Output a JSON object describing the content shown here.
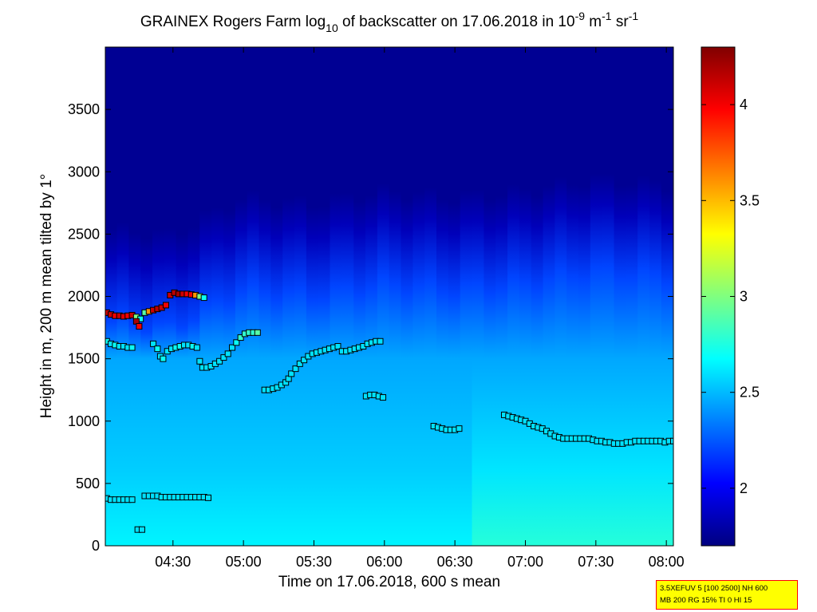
{
  "chart_data": {
    "type": "heatmap",
    "title_parts": {
      "prefix": "GRAINEX Rogers Farm log",
      "sub": "10",
      "middle": " of backscatter on 17.06.2018 in 10",
      "sup1": "-9",
      "unit1": " m",
      "sup2": "-1",
      "unit2": " sr",
      "sup3": "-1"
    },
    "xlabel": "Time on 17.06.2018, 600 s mean",
    "ylabel": "Height in m, 200 m mean tilted by 1°",
    "x_range_hours": [
      4.02,
      8.05
    ],
    "x_ticks": [
      {
        "value": 4.5,
        "label": "04:30"
      },
      {
        "value": 5.0,
        "label": "05:00"
      },
      {
        "value": 5.5,
        "label": "05:30"
      },
      {
        "value": 6.0,
        "label": "06:00"
      },
      {
        "value": 6.5,
        "label": "06:30"
      },
      {
        "value": 7.0,
        "label": "07:00"
      },
      {
        "value": 7.5,
        "label": "07:30"
      },
      {
        "value": 8.0,
        "label": "08:00"
      }
    ],
    "ylim": [
      0,
      4000
    ],
    "y_ticks": [
      0,
      500,
      1000,
      1500,
      2000,
      2500,
      3000,
      3500
    ],
    "colorbar": {
      "range": [
        1.7,
        4.3
      ],
      "ticks": [
        2,
        2.5,
        3,
        3.5,
        4
      ],
      "tick_labels": [
        "2",
        "2.5",
        "3",
        "3.5",
        "4"
      ],
      "colormap": "jet"
    },
    "background_field": {
      "description_free": true,
      "times": [
        4.02,
        4.5,
        5.0,
        5.5,
        6.0,
        6.5,
        7.0,
        7.5,
        8.05
      ],
      "top_of_moist_layer_m": [
        2300,
        2250,
        2550,
        2500,
        2600,
        2550,
        2600,
        2700,
        2650
      ],
      "surface_value": 2.65,
      "layer_value": 2.4,
      "upper_value": 1.75
    },
    "markers": [
      {
        "series": "upper",
        "points": [
          [
            4.03,
            1870,
            4.1
          ],
          [
            4.06,
            1855,
            4.1
          ],
          [
            4.09,
            1845,
            4.0
          ],
          [
            4.12,
            1845,
            4.1
          ],
          [
            4.15,
            1840,
            4.05
          ],
          [
            4.18,
            1845,
            4.0
          ],
          [
            4.21,
            1850,
            4.1
          ],
          [
            4.24,
            1835,
            3.0
          ],
          [
            4.27,
            1820,
            2.7
          ],
          [
            4.3,
            1870,
            2.9
          ],
          [
            4.33,
            1880,
            3.6
          ],
          [
            4.36,
            1890,
            4.1
          ],
          [
            4.39,
            1900,
            4.15
          ],
          [
            4.42,
            1910,
            4.1
          ],
          [
            4.45,
            1930,
            4.0
          ],
          [
            4.48,
            2010,
            4.1
          ],
          [
            4.51,
            2030,
            4.15
          ],
          [
            4.54,
            2020,
            4.2
          ],
          [
            4.57,
            2020,
            4.1
          ],
          [
            4.6,
            2020,
            4.0
          ],
          [
            4.63,
            2015,
            4.0
          ],
          [
            4.66,
            2010,
            3.6
          ],
          [
            4.69,
            2000,
            3.0
          ],
          [
            4.72,
            1990,
            2.7
          ]
        ]
      },
      {
        "series": "middle",
        "points": [
          [
            4.03,
            1640,
            2.7
          ],
          [
            4.06,
            1620,
            2.6
          ],
          [
            4.09,
            1610,
            2.7
          ],
          [
            4.12,
            1600,
            2.6
          ],
          [
            4.15,
            1600,
            2.6
          ],
          [
            4.18,
            1590,
            2.6
          ],
          [
            4.21,
            1590,
            2.7
          ],
          [
            4.24,
            1800,
            4.2
          ],
          [
            4.26,
            1760,
            4.0
          ],
          [
            4.36,
            1620,
            2.6
          ],
          [
            4.39,
            1580,
            2.7
          ],
          [
            4.41,
            1520,
            2.6
          ],
          [
            4.43,
            1500,
            2.7
          ],
          [
            4.46,
            1560,
            2.6
          ],
          [
            4.49,
            1580,
            2.6
          ],
          [
            4.52,
            1590,
            2.7
          ],
          [
            4.55,
            1600,
            2.7
          ],
          [
            4.58,
            1610,
            2.6
          ],
          [
            4.61,
            1610,
            2.6
          ],
          [
            4.64,
            1600,
            2.7
          ],
          [
            4.67,
            1590,
            2.6
          ],
          [
            4.69,
            1480,
            2.6
          ],
          [
            4.71,
            1430,
            2.6
          ],
          [
            4.74,
            1430,
            2.6
          ],
          [
            4.77,
            1440,
            2.6
          ],
          [
            4.8,
            1460,
            2.6
          ],
          [
            4.83,
            1480,
            2.6
          ],
          [
            4.86,
            1510,
            2.6
          ],
          [
            4.89,
            1540,
            2.6
          ],
          [
            4.92,
            1590,
            2.6
          ],
          [
            4.95,
            1630,
            2.7
          ],
          [
            4.98,
            1670,
            2.8
          ],
          [
            5.01,
            1700,
            2.8
          ],
          [
            5.04,
            1710,
            2.8
          ],
          [
            5.07,
            1710,
            2.8
          ],
          [
            5.1,
            1710,
            2.9
          ],
          [
            5.15,
            1250,
            2.6
          ],
          [
            5.18,
            1250,
            2.6
          ],
          [
            5.21,
            1260,
            2.6
          ],
          [
            5.24,
            1270,
            2.6
          ],
          [
            5.27,
            1290,
            2.6
          ],
          [
            5.3,
            1310,
            2.6
          ],
          [
            5.32,
            1340,
            2.6
          ],
          [
            5.34,
            1380,
            2.6
          ],
          [
            5.37,
            1420,
            2.6
          ],
          [
            5.4,
            1460,
            2.6
          ],
          [
            5.43,
            1490,
            2.6
          ],
          [
            5.46,
            1520,
            2.6
          ],
          [
            5.49,
            1540,
            2.6
          ],
          [
            5.52,
            1550,
            2.6
          ],
          [
            5.55,
            1560,
            2.6
          ],
          [
            5.58,
            1570,
            2.6
          ],
          [
            5.61,
            1580,
            2.6
          ],
          [
            5.64,
            1590,
            2.6
          ],
          [
            5.67,
            1600,
            2.6
          ],
          [
            5.7,
            1560,
            2.6
          ],
          [
            5.73,
            1560,
            2.6
          ],
          [
            5.76,
            1570,
            2.6
          ],
          [
            5.79,
            1580,
            2.6
          ],
          [
            5.82,
            1590,
            2.6
          ],
          [
            5.85,
            1600,
            2.6
          ],
          [
            5.88,
            1620,
            2.6
          ],
          [
            5.91,
            1630,
            2.6
          ],
          [
            5.94,
            1640,
            2.6
          ],
          [
            5.97,
            1640,
            2.6
          ],
          [
            5.87,
            1200,
            2.6
          ],
          [
            5.9,
            1210,
            2.6
          ],
          [
            5.93,
            1210,
            2.6
          ],
          [
            5.96,
            1200,
            2.6
          ],
          [
            5.99,
            1190,
            2.6
          ]
        ]
      },
      {
        "series": "lower",
        "points": [
          [
            6.35,
            960,
            2.6
          ],
          [
            6.38,
            950,
            2.6
          ],
          [
            6.41,
            940,
            2.6
          ],
          [
            6.44,
            930,
            2.6
          ],
          [
            6.47,
            930,
            2.6
          ],
          [
            6.5,
            930,
            2.6
          ],
          [
            6.53,
            940,
            2.6
          ],
          [
            6.85,
            1050,
            2.6
          ],
          [
            6.88,
            1040,
            2.6
          ],
          [
            6.91,
            1030,
            2.6
          ],
          [
            6.94,
            1020,
            2.6
          ],
          [
            6.97,
            1010,
            2.6
          ],
          [
            7.0,
            1000,
            2.6
          ],
          [
            7.03,
            980,
            2.6
          ],
          [
            7.06,
            960,
            2.6
          ],
          [
            7.09,
            950,
            2.6
          ],
          [
            7.12,
            940,
            2.6
          ],
          [
            7.15,
            920,
            2.6
          ],
          [
            7.18,
            900,
            2.6
          ],
          [
            7.21,
            880,
            2.6
          ],
          [
            7.24,
            870,
            2.6
          ],
          [
            7.27,
            860,
            2.6
          ],
          [
            7.3,
            860,
            2.6
          ],
          [
            7.33,
            860,
            2.6
          ],
          [
            7.36,
            860,
            2.6
          ],
          [
            7.39,
            860,
            2.6
          ],
          [
            7.42,
            860,
            2.6
          ],
          [
            7.45,
            860,
            2.6
          ],
          [
            7.48,
            850,
            2.6
          ],
          [
            7.51,
            840,
            2.6
          ],
          [
            7.54,
            840,
            2.6
          ],
          [
            7.57,
            830,
            2.6
          ],
          [
            7.6,
            830,
            2.6
          ],
          [
            7.63,
            820,
            2.6
          ],
          [
            7.66,
            820,
            2.6
          ],
          [
            7.69,
            820,
            2.6
          ],
          [
            7.72,
            830,
            2.6
          ],
          [
            7.75,
            830,
            2.6
          ],
          [
            7.78,
            840,
            2.6
          ],
          [
            7.81,
            840,
            2.6
          ],
          [
            7.84,
            840,
            2.6
          ],
          [
            7.87,
            840,
            2.6
          ],
          [
            7.9,
            840,
            2.6
          ],
          [
            7.93,
            840,
            2.6
          ],
          [
            7.96,
            840,
            2.6
          ],
          [
            7.99,
            830,
            2.6
          ],
          [
            8.02,
            840,
            2.6
          ],
          [
            8.05,
            840,
            2.6
          ]
        ]
      },
      {
        "series": "surface",
        "points": [
          [
            4.03,
            380,
            2.6
          ],
          [
            4.06,
            370,
            2.6
          ],
          [
            4.09,
            370,
            2.6
          ],
          [
            4.12,
            370,
            2.6
          ],
          [
            4.15,
            370,
            2.6
          ],
          [
            4.18,
            370,
            2.6
          ],
          [
            4.21,
            370,
            2.6
          ],
          [
            4.3,
            400,
            2.6
          ],
          [
            4.33,
            400,
            2.6
          ],
          [
            4.36,
            400,
            2.6
          ],
          [
            4.39,
            400,
            2.6
          ],
          [
            4.42,
            390,
            2.6
          ],
          [
            4.45,
            390,
            2.6
          ],
          [
            4.48,
            390,
            2.6
          ],
          [
            4.51,
            390,
            2.6
          ],
          [
            4.54,
            390,
            2.6
          ],
          [
            4.57,
            390,
            2.6
          ],
          [
            4.6,
            390,
            2.6
          ],
          [
            4.63,
            390,
            2.6
          ],
          [
            4.66,
            390,
            2.6
          ],
          [
            4.69,
            390,
            2.6
          ],
          [
            4.72,
            390,
            2.6
          ],
          [
            4.75,
            385,
            2.6
          ],
          [
            4.25,
            130,
            2.6
          ],
          [
            4.28,
            130,
            2.6
          ]
        ]
      }
    ]
  },
  "info_box": {
    "line1": "3.5XEFUV 5 [100 2500] NH 600",
    "line2": "MB 200 RG 15% TI 0 HI 15"
  }
}
